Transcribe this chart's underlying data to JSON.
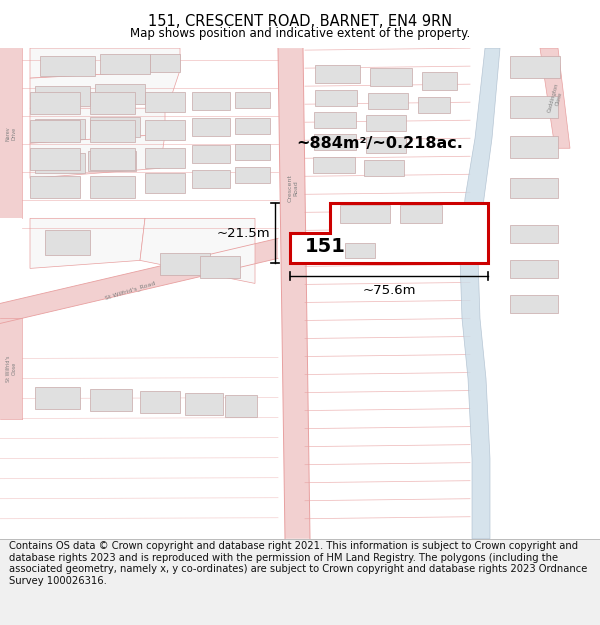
{
  "title": "151, CRESCENT ROAD, BARNET, EN4 9RN",
  "subtitle": "Map shows position and indicative extent of the property.",
  "footer": "Contains OS data © Crown copyright and database right 2021. This information is subject to Crown copyright and database rights 2023 and is reproduced with the permission of HM Land Registry. The polygons (including the associated geometry, namely x, y co-ordinates) are subject to Crown copyright and database rights 2023 Ordnance Survey 100026316.",
  "area_label": "~884m²/~0.218ac.",
  "width_label": "~75.6m",
  "height_label": "~21.5m",
  "property_number": "151",
  "map_bg": "#ffffff",
  "road_fill": "#f2d0d0",
  "road_line": "#e8a0a0",
  "plot_line": "#e8a0a0",
  "building_fill": "#e0e0e0",
  "building_line": "#c8a8a8",
  "water_fill": "#ccdde8",
  "water_line": "#aabbcc",
  "highlight_line": "#cc0000",
  "dim_line": "#000000",
  "text_color": "#000000",
  "road_label_color": "#808080",
  "footer_bg": "#f0f0f0",
  "title_fontsize": 10.5,
  "subtitle_fontsize": 8.5,
  "footer_fontsize": 7.2,
  "label_fontsize": 9.5,
  "area_fontsize": 11.5,
  "propnum_fontsize": 14
}
